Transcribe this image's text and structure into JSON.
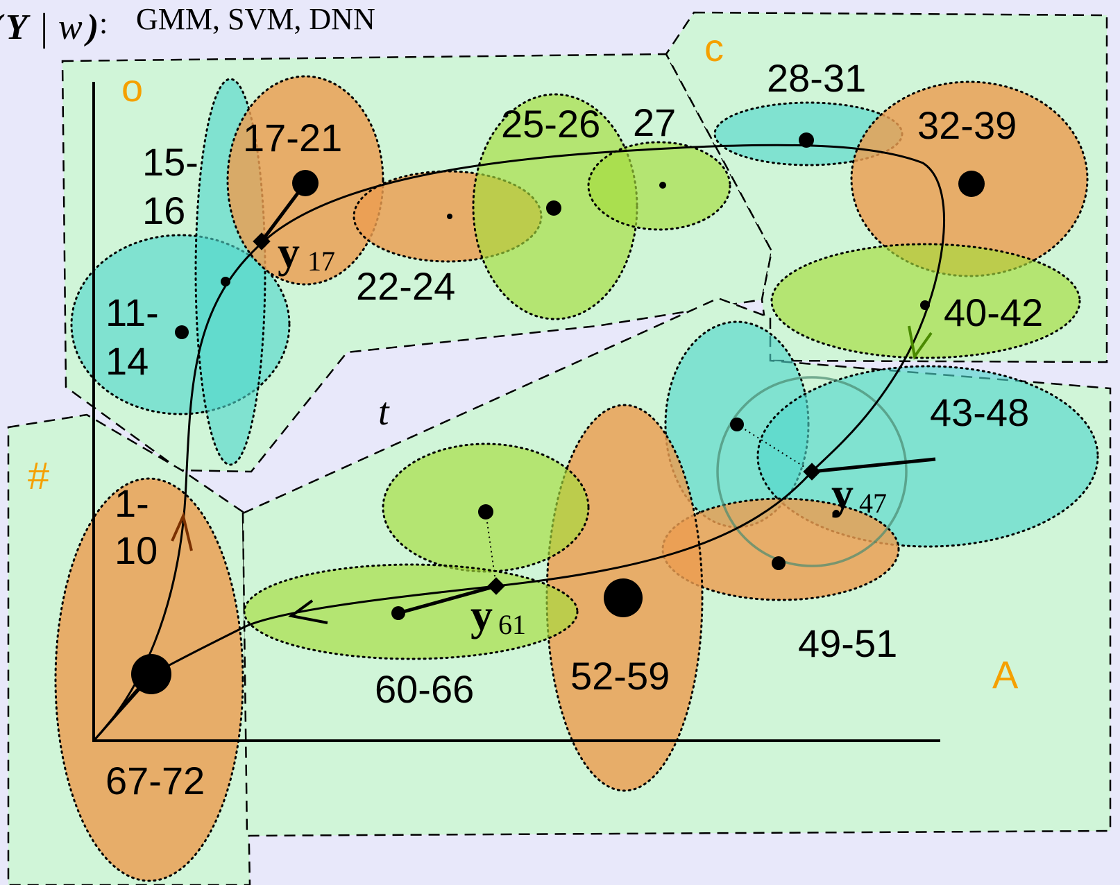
{
  "header": {
    "formula_symbol": "Y",
    "formula_bar": "|",
    "formula_given": "w",
    "formula_close": ")",
    "formula_colon": ":",
    "models": "GMM, SVM, DNN"
  },
  "phonemes": {
    "o": "o",
    "c": "c",
    "hash": "#",
    "a": "A"
  },
  "frame_labels": {
    "f15_16_a": "15-",
    "f15_16_b": "16",
    "f17_21": "17-21",
    "f11_14_a": "11-",
    "f11_14_b": "14",
    "f22_24": "22-24",
    "f25_26": "25-26",
    "f27": "27",
    "f28_31": "28-31",
    "f32_39": "32-39",
    "f40_42": "40-42",
    "f43_48": "43-48",
    "f49_51": "49-51",
    "f52_59": "52-59",
    "f60_66": "60-66",
    "f1_10_a": "1-",
    "f1_10_b": "10",
    "f67_72": "67-72"
  },
  "trajectory_points": {
    "y17": {
      "base": "y",
      "sub": "17"
    },
    "y47": {
      "base": "y",
      "sub": "47"
    },
    "y61": {
      "base": "y",
      "sub": "61"
    }
  },
  "axis": {
    "time_label": "t"
  },
  "colors": {
    "orange": "#ec9e50",
    "cyan": "#4fd6cc",
    "green": "#a6dc3c",
    "region": "#d0f5d8",
    "phoneme": "#f5a000",
    "background": "#e8e8fa"
  }
}
